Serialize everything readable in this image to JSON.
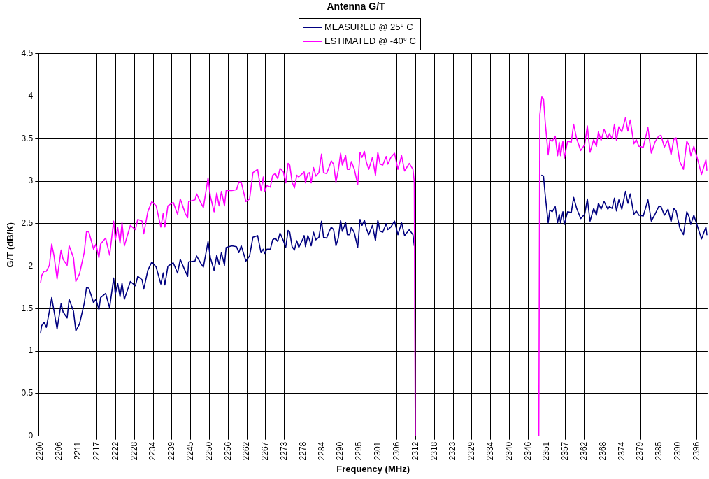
{
  "chart_data": {
    "type": "line",
    "title": "Antenna G/T",
    "xlabel": "Frequency (MHz)",
    "ylabel": "G/T (dB/K)",
    "x": [
      2200.0,
      2200.3,
      2201.0,
      2201.7,
      2202.6,
      2203.3,
      2204.0,
      2204.9,
      2206.1,
      2206.7,
      2207.9,
      2208.5,
      2209.8,
      2210.5,
      2211.6,
      2213.0,
      2213.7,
      2214.4,
      2215.8,
      2216.5,
      2217.4,
      2217.9,
      2219.4,
      2220.6,
      2221.8,
      2222.3,
      2223.0,
      2223.7,
      2224.3,
      2225.0,
      2226.8,
      2228.3,
      2229.0,
      2230.3,
      2230.8,
      2232.0,
      2233.2,
      2234.5,
      2235.9,
      2236.6,
      2237.1,
      2238.0,
      2239.6,
      2240.9,
      2241.7,
      2243.2,
      2243.9,
      2244.2,
      2246.1,
      2246.6,
      2247.9,
      2248.6,
      2250.0,
      2250.7,
      2251.8,
      2252.6,
      2253.3,
      2254.0,
      2254.9,
      2255.4,
      2257.1,
      2258.5,
      2259.2,
      2259.9,
      2261.3,
      2262.4,
      2263.4,
      2264.8,
      2265.8,
      2266.5,
      2266.9,
      2267.6,
      2268.6,
      2269.3,
      2270.1,
      2270.8,
      2271.5,
      2272.5,
      2273.2,
      2273.9,
      2274.4,
      2275.1,
      2275.8,
      2276.5,
      2277.1,
      2278.2,
      2278.7,
      2279.1,
      2279.8,
      2280.3,
      2280.8,
      2281.5,
      2282.2,
      2283.1,
      2283.9,
      2284.5,
      2285.4,
      2286.1,
      2286.8,
      2287.5,
      2288.2,
      2288.9,
      2289.6,
      2290.1,
      2291.1,
      2291.6,
      2292.3,
      2292.8,
      2293.7,
      2294.7,
      2295.4,
      2296.0,
      2296.7,
      2297.3,
      2298.0,
      2299.1,
      2300.0,
      2300.7,
      2301.4,
      2302.2,
      2303.2,
      2303.7,
      2304.6,
      2305.7,
      2306.7,
      2307.8,
      2308.7,
      2310.1,
      2311.2,
      2311.6,
      2311.9,
      2348.8,
      2349.1,
      2349.7,
      2350.2,
      2350.7,
      2351.6,
      2352.1,
      2352.8,
      2353.7,
      2354.4,
      2354.9,
      2355.3,
      2356.0,
      2356.4,
      2357.4,
      2358.5,
      2359.2,
      2360.1,
      2361.3,
      2362.5,
      2363.3,
      2364.1,
      2365.2,
      2366.0,
      2366.6,
      2367.4,
      2368.3,
      2369.4,
      2369.9,
      2370.7,
      2371.4,
      2372.0,
      2372.7,
      2373.6,
      2374.7,
      2375.4,
      2376.1,
      2377.2,
      2377.9,
      2378.7,
      2380.0,
      2381.4,
      2382.4,
      2383.5,
      2384.6,
      2385.3,
      2386.3,
      2387.4,
      2388.3,
      2389.1,
      2389.8,
      2390.9,
      2392.0,
      2393.0,
      2393.7,
      2394.2,
      2395.1,
      2396.0,
      2397.4,
      2398.7,
      2399.0
    ],
    "series": [
      {
        "name": "MEASURED @ 25° C",
        "color": "#000080",
        "values": [
          1.22,
          1.3,
          1.34,
          1.28,
          1.47,
          1.63,
          1.47,
          1.26,
          1.56,
          1.46,
          1.39,
          1.61,
          1.47,
          1.24,
          1.32,
          1.56,
          1.75,
          1.74,
          1.57,
          1.61,
          1.49,
          1.63,
          1.68,
          1.51,
          1.86,
          1.67,
          1.8,
          1.64,
          1.8,
          1.61,
          1.82,
          1.77,
          1.88,
          1.84,
          1.73,
          1.95,
          2.05,
          1.99,
          1.79,
          1.92,
          1.78,
          2.0,
          2.04,
          1.92,
          2.08,
          1.94,
          1.88,
          2.05,
          2.06,
          2.12,
          2.03,
          1.99,
          2.29,
          2.1,
          1.95,
          2.13,
          2.02,
          2.16,
          2.01,
          2.22,
          2.24,
          2.23,
          2.16,
          2.24,
          2.06,
          2.12,
          2.34,
          2.36,
          2.16,
          2.2,
          2.15,
          2.2,
          2.2,
          2.31,
          2.33,
          2.29,
          2.39,
          2.3,
          2.22,
          2.42,
          2.4,
          2.23,
          2.19,
          2.3,
          2.22,
          2.31,
          2.36,
          2.23,
          2.36,
          2.31,
          2.24,
          2.4,
          2.31,
          2.34,
          2.53,
          2.34,
          2.33,
          2.4,
          2.46,
          2.43,
          2.24,
          2.33,
          2.54,
          2.41,
          2.51,
          2.37,
          2.37,
          2.46,
          2.39,
          2.22,
          2.55,
          2.48,
          2.54,
          2.44,
          2.37,
          2.48,
          2.3,
          2.54,
          2.41,
          2.4,
          2.5,
          2.43,
          2.46,
          2.53,
          2.37,
          2.51,
          2.36,
          2.43,
          2.37,
          2.24,
          null,
          null,
          null,
          3.07,
          3.06,
          2.84,
          2.51,
          2.66,
          2.64,
          2.7,
          2.51,
          2.61,
          2.51,
          2.64,
          2.49,
          2.64,
          2.63,
          2.81,
          2.68,
          2.56,
          2.61,
          2.79,
          2.53,
          2.68,
          2.6,
          2.74,
          2.67,
          2.76,
          2.67,
          2.7,
          2.68,
          2.8,
          2.65,
          2.78,
          2.67,
          2.88,
          2.74,
          2.85,
          2.61,
          2.65,
          2.6,
          2.59,
          2.78,
          2.53,
          2.61,
          2.7,
          2.7,
          2.6,
          2.67,
          2.52,
          2.68,
          2.65,
          2.45,
          2.37,
          2.64,
          2.58,
          2.49,
          2.6,
          2.49,
          2.32,
          2.46,
          2.37
        ]
      },
      {
        "name": "ESTIMATED @ -40° C",
        "color": "#ff00ff",
        "values": [
          1.81,
          1.89,
          1.94,
          1.94,
          2.01,
          2.26,
          2.12,
          1.85,
          2.19,
          2.08,
          2.01,
          2.24,
          2.1,
          1.82,
          1.91,
          2.16,
          2.41,
          2.4,
          2.2,
          2.26,
          2.1,
          2.26,
          2.33,
          2.13,
          2.53,
          2.31,
          2.46,
          2.27,
          2.51,
          2.24,
          2.48,
          2.43,
          2.55,
          2.53,
          2.38,
          2.64,
          2.76,
          2.71,
          2.46,
          2.62,
          2.46,
          2.71,
          2.75,
          2.61,
          2.79,
          2.62,
          2.57,
          2.76,
          2.78,
          2.85,
          2.74,
          2.69,
          3.04,
          2.82,
          2.64,
          2.86,
          2.71,
          2.88,
          2.71,
          2.89,
          2.89,
          2.9,
          2.99,
          2.99,
          2.76,
          2.79,
          3.1,
          3.14,
          2.89,
          3.05,
          2.88,
          2.95,
          2.93,
          3.07,
          3.09,
          3.03,
          3.15,
          3.11,
          2.98,
          3.21,
          3.19,
          2.99,
          2.92,
          3.07,
          3.05,
          3.09,
          3.11,
          2.98,
          3.09,
          3.1,
          2.98,
          3.16,
          3.06,
          3.1,
          3.32,
          3.1,
          3.09,
          3.16,
          3.24,
          3.2,
          2.99,
          3.13,
          3.33,
          3.19,
          3.3,
          3.14,
          3.14,
          3.23,
          3.14,
          2.96,
          3.34,
          3.28,
          3.35,
          3.22,
          3.14,
          3.28,
          3.07,
          3.34,
          3.2,
          3.19,
          3.29,
          3.2,
          3.28,
          3.33,
          3.14,
          3.3,
          3.12,
          3.21,
          3.14,
          2.99,
          0,
          0,
          3.78,
          3.99,
          3.97,
          3.7,
          3.31,
          3.49,
          3.47,
          3.53,
          3.3,
          3.46,
          3.3,
          3.47,
          3.27,
          3.47,
          3.46,
          3.67,
          3.5,
          3.36,
          3.43,
          3.65,
          3.34,
          3.49,
          3.41,
          3.58,
          3.48,
          3.61,
          3.5,
          3.56,
          3.5,
          3.67,
          3.48,
          3.64,
          3.58,
          3.75,
          3.59,
          3.72,
          3.44,
          3.49,
          3.41,
          3.4,
          3.63,
          3.33,
          3.46,
          3.53,
          3.54,
          3.4,
          3.49,
          3.31,
          3.49,
          3.51,
          3.23,
          3.14,
          3.47,
          3.42,
          3.3,
          3.41,
          3.29,
          3.08,
          3.25,
          3.13
        ]
      }
    ],
    "xlim": [
      2199.4,
      2399.2
    ],
    "xticks": [
      2200,
      {
        "value": 2205.6,
        "label": "2206"
      },
      {
        "value": 2211.2,
        "label": "2211"
      },
      {
        "value": 2216.8,
        "label": "2217"
      },
      {
        "value": 2222.4,
        "label": "2222"
      },
      2228,
      {
        "value": 2233.6,
        "label": "2234"
      },
      {
        "value": 2239.2,
        "label": "2239"
      },
      {
        "value": 2244.8,
        "label": "2245"
      },
      {
        "value": 2250.4,
        "label": "2250"
      },
      2256,
      {
        "value": 2261.6,
        "label": "2262"
      },
      {
        "value": 2267.2,
        "label": "2267"
      },
      {
        "value": 2272.8,
        "label": "2273"
      },
      {
        "value": 2278.4,
        "label": "2278"
      },
      2284,
      {
        "value": 2289.6,
        "label": "2290"
      },
      {
        "value": 2295.2,
        "label": "2295"
      },
      {
        "value": 2300.8,
        "label": "2301"
      },
      {
        "value": 2306.4,
        "label": "2306"
      },
      2312,
      {
        "value": 2317.6,
        "label": "2318"
      },
      {
        "value": 2323.2,
        "label": "2323"
      },
      {
        "value": 2328.8,
        "label": "2329"
      },
      {
        "value": 2334.4,
        "label": "2334"
      },
      2340,
      {
        "value": 2345.6,
        "label": "2346"
      },
      {
        "value": 2351.2,
        "label": "2351"
      },
      {
        "value": 2356.8,
        "label": "2357"
      },
      {
        "value": 2362.4,
        "label": "2362"
      },
      2368,
      {
        "value": 2373.6,
        "label": "2374"
      },
      {
        "value": 2379.2,
        "label": "2379"
      },
      {
        "value": 2384.8,
        "label": "2385"
      },
      {
        "value": 2390.4,
        "label": "2390"
      },
      2396
    ],
    "ylim": [
      0,
      4.5
    ],
    "yticks": [
      0,
      0.5,
      1,
      1.5,
      2,
      2.5,
      3,
      3.5,
      4,
      4.5
    ],
    "grid": true,
    "legend": "top",
    "marker": "none",
    "line_style": "solid"
  }
}
